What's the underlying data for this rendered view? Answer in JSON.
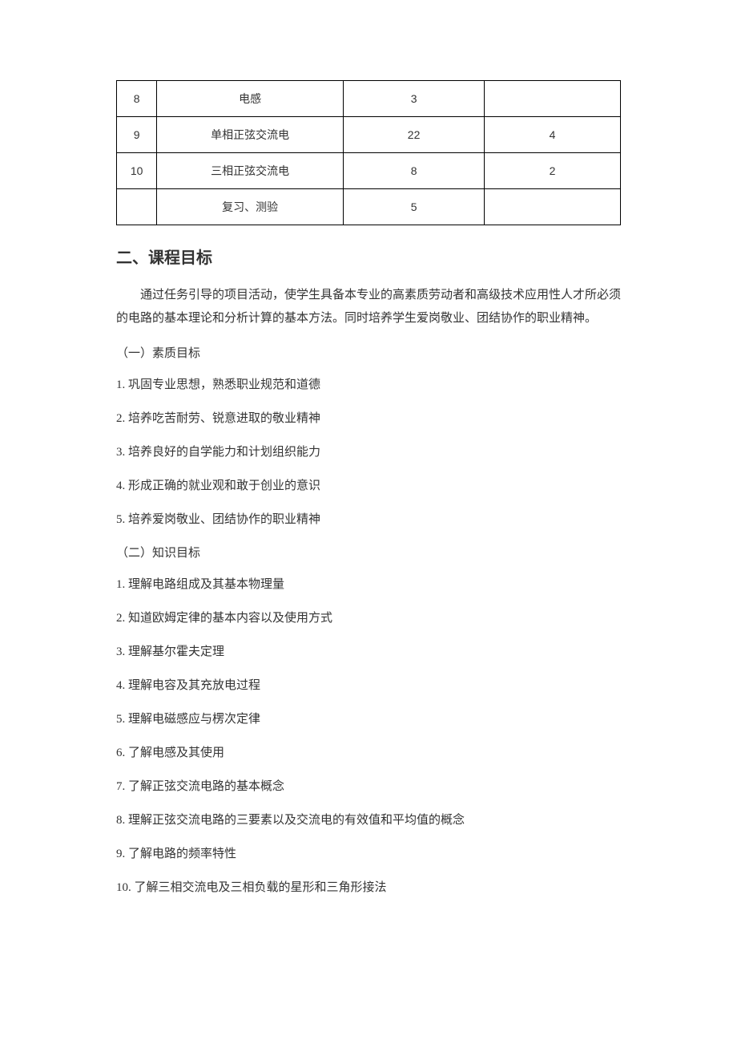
{
  "table": {
    "rows": [
      {
        "num": "8",
        "topic": "电感",
        "hours": "3",
        "extra": ""
      },
      {
        "num": "9",
        "topic": "单相正弦交流电",
        "hours": "22",
        "extra": "4"
      },
      {
        "num": "10",
        "topic": "三相正弦交流电",
        "hours": "8",
        "extra": "2"
      },
      {
        "num": "",
        "topic": "复习、测验",
        "hours": "5",
        "extra": ""
      }
    ]
  },
  "heading": "二、课程目标",
  "intro": "通过任务引导的项目活动，使学生具备本专业的高素质劳动者和高级技术应用性人才所必须的电路的基本理论和分析计算的基本方法。同时培养学生爱岗敬业、团结协作的职业精神。",
  "section1": {
    "title": "（一）素质目标",
    "items": [
      "1. 巩固专业思想，熟悉职业规范和道德",
      "2. 培养吃苦耐劳、锐意进取的敬业精神",
      "3. 培养良好的自学能力和计划组织能力",
      "4. 形成正确的就业观和敢于创业的意识",
      "5. 培养爱岗敬业、团结协作的职业精神"
    ]
  },
  "section2": {
    "title": "（二）知识目标",
    "items": [
      "1. 理解电路组成及其基本物理量",
      "2. 知道欧姆定律的基本内容以及使用方式",
      "3. 理解基尔霍夫定理",
      "4. 理解电容及其充放电过程",
      "5. 理解电磁感应与楞次定律",
      "6. 了解电感及其使用",
      "7. 了解正弦交流电路的基本概念",
      "8. 理解正弦交流电路的三要素以及交流电的有效值和平均值的概念",
      "9. 了解电路的频率特性",
      "10. 了解三相交流电及三相负载的星形和三角形接法"
    ]
  }
}
